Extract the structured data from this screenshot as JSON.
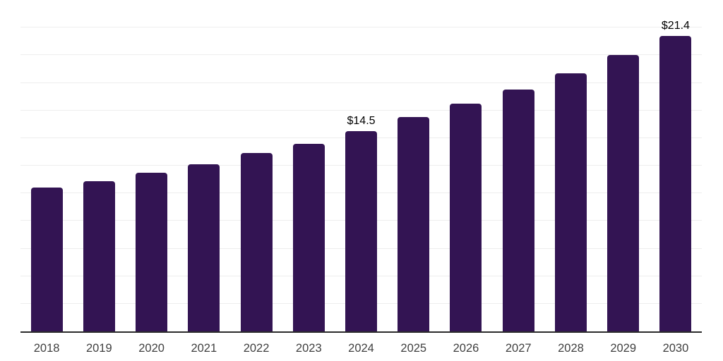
{
  "chart_data": {
    "type": "bar",
    "title": "",
    "xlabel": "",
    "ylabel": "",
    "categories": [
      "2018",
      "2019",
      "2020",
      "2021",
      "2022",
      "2023",
      "2024",
      "2025",
      "2026",
      "2027",
      "2028",
      "2029",
      "2030"
    ],
    "values": [
      10.4,
      10.9,
      11.5,
      12.1,
      12.9,
      13.6,
      14.5,
      15.5,
      16.5,
      17.5,
      18.7,
      20.0,
      21.4
    ],
    "bar_labels": [
      "",
      "",
      "",
      "",
      "",
      "",
      "$14.5",
      "",
      "",
      "",
      "",
      "",
      "$21.4"
    ],
    "ylim": [
      0,
      24
    ],
    "gridline_step": 2,
    "grid": true,
    "legend": false,
    "colors": {
      "bar": "#331453",
      "axis_line": "#2b2b2b",
      "gridline": "#eeeeee",
      "tick_label": "#404040",
      "data_label": "#000000",
      "background": "#ffffff"
    }
  }
}
